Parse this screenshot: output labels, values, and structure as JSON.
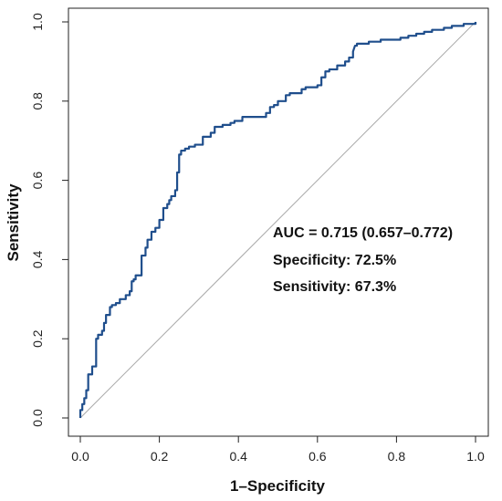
{
  "chart_data": {
    "type": "line",
    "xlabel": "1–Specificity",
    "ylabel": "Sensitivity",
    "xlim": [
      0,
      1
    ],
    "ylim": [
      0,
      1
    ],
    "x_ticks": [
      "0.0",
      "0.2",
      "0.4",
      "0.6",
      "0.8",
      "1.0"
    ],
    "y_ticks": [
      "0.0",
      "0.2",
      "0.4",
      "0.6",
      "0.8",
      "1.0"
    ],
    "grid": false,
    "legend": "none",
    "annotations": [
      "AUC = 0.715 (0.657–0.772)",
      "Specificity: 72.5%",
      "Sensitivity: 67.3%"
    ],
    "series": [
      {
        "color": "#1f4e8c",
        "x": [
          0.0,
          0.0,
          0.005,
          0.005,
          0.01,
          0.01,
          0.015,
          0.015,
          0.02,
          0.02,
          0.03,
          0.03,
          0.04,
          0.04,
          0.045,
          0.045,
          0.055,
          0.055,
          0.06,
          0.06,
          0.065,
          0.065,
          0.075,
          0.075,
          0.08,
          0.08,
          0.09,
          0.09,
          0.1,
          0.1,
          0.115,
          0.115,
          0.125,
          0.125,
          0.13,
          0.13,
          0.135,
          0.135,
          0.14,
          0.14,
          0.155,
          0.155,
          0.165,
          0.165,
          0.17,
          0.17,
          0.18,
          0.18,
          0.19,
          0.19,
          0.2,
          0.2,
          0.21,
          0.21,
          0.22,
          0.22,
          0.225,
          0.225,
          0.23,
          0.23,
          0.24,
          0.24,
          0.245,
          0.245,
          0.25,
          0.25,
          0.255,
          0.255,
          0.265,
          0.265,
          0.275,
          0.275,
          0.29,
          0.29,
          0.31,
          0.31,
          0.33,
          0.33,
          0.34,
          0.34,
          0.36,
          0.36,
          0.38,
          0.38,
          0.39,
          0.39,
          0.41,
          0.41,
          0.47,
          0.47,
          0.48,
          0.48,
          0.49,
          0.49,
          0.5,
          0.5,
          0.52,
          0.52,
          0.53,
          0.53,
          0.56,
          0.56,
          0.57,
          0.57,
          0.6,
          0.6,
          0.61,
          0.61,
          0.62,
          0.62,
          0.63,
          0.63,
          0.65,
          0.65,
          0.67,
          0.67,
          0.68,
          0.68,
          0.69,
          0.69,
          0.695,
          0.7,
          0.7,
          0.73,
          0.73,
          0.76,
          0.76,
          0.81,
          0.81,
          0.83,
          0.83,
          0.85,
          0.85,
          0.87,
          0.87,
          0.89,
          0.89,
          0.92,
          0.92,
          0.94,
          0.94,
          0.97,
          0.97,
          1.0,
          1.0
        ],
        "y": [
          0.0,
          0.02,
          0.02,
          0.035,
          0.035,
          0.05,
          0.05,
          0.07,
          0.07,
          0.11,
          0.11,
          0.13,
          0.13,
          0.2,
          0.2,
          0.21,
          0.21,
          0.22,
          0.22,
          0.24,
          0.24,
          0.26,
          0.26,
          0.28,
          0.28,
          0.285,
          0.285,
          0.29,
          0.29,
          0.3,
          0.3,
          0.31,
          0.31,
          0.32,
          0.32,
          0.345,
          0.345,
          0.35,
          0.35,
          0.36,
          0.36,
          0.41,
          0.41,
          0.43,
          0.43,
          0.45,
          0.45,
          0.47,
          0.47,
          0.48,
          0.48,
          0.5,
          0.5,
          0.53,
          0.53,
          0.54,
          0.54,
          0.55,
          0.55,
          0.56,
          0.56,
          0.575,
          0.575,
          0.62,
          0.62,
          0.665,
          0.665,
          0.675,
          0.675,
          0.68,
          0.68,
          0.685,
          0.685,
          0.69,
          0.69,
          0.71,
          0.71,
          0.72,
          0.72,
          0.735,
          0.735,
          0.74,
          0.74,
          0.745,
          0.745,
          0.75,
          0.75,
          0.76,
          0.76,
          0.77,
          0.77,
          0.785,
          0.785,
          0.79,
          0.79,
          0.8,
          0.8,
          0.815,
          0.815,
          0.82,
          0.82,
          0.83,
          0.83,
          0.835,
          0.835,
          0.84,
          0.84,
          0.86,
          0.86,
          0.875,
          0.875,
          0.88,
          0.88,
          0.89,
          0.89,
          0.9,
          0.9,
          0.91,
          0.91,
          0.925,
          0.94,
          0.94,
          0.945,
          0.945,
          0.95,
          0.95,
          0.955,
          0.955,
          0.96,
          0.96,
          0.965,
          0.965,
          0.97,
          0.97,
          0.975,
          0.975,
          0.98,
          0.98,
          0.985,
          0.985,
          0.99,
          0.99,
          0.995,
          0.995,
          1.0
        ]
      },
      {
        "color": "#a8a8a8",
        "x": [
          0,
          1
        ],
        "y": [
          0,
          1
        ]
      }
    ]
  }
}
